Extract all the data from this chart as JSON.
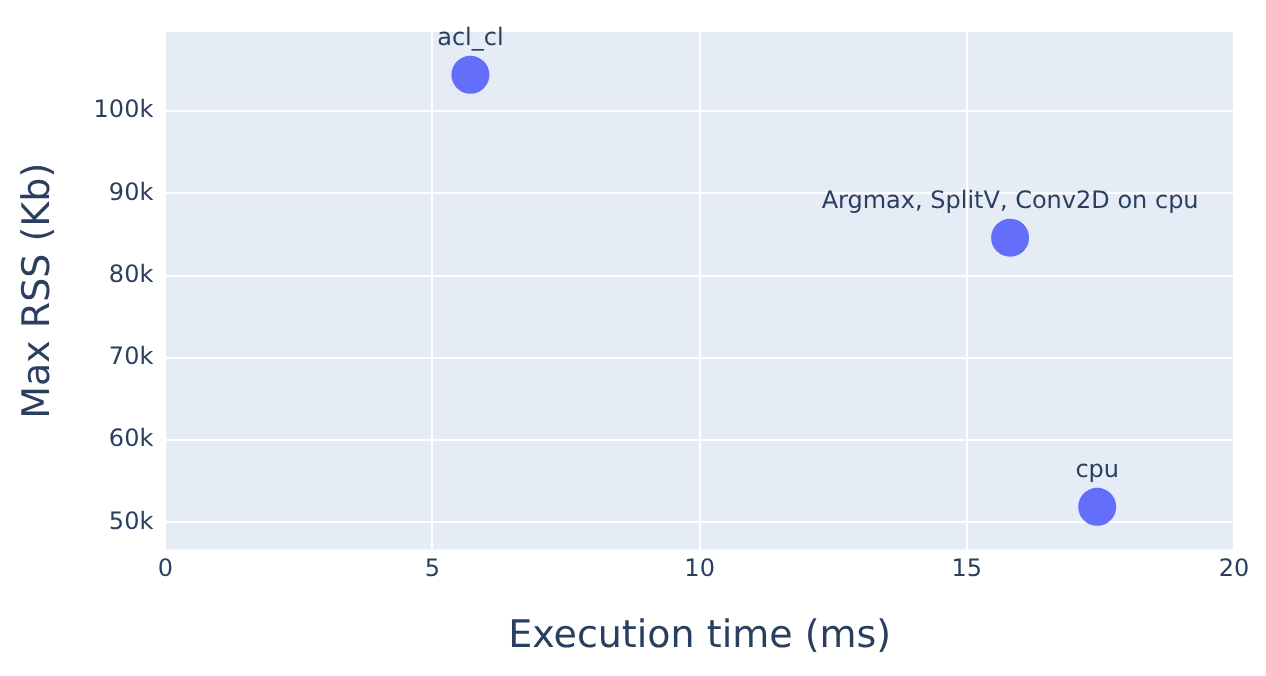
{
  "chart_data": {
    "type": "scatter",
    "xlabel": "Execution time (ms)",
    "ylabel": "Max RSS (Kb)",
    "x": [
      5.71,
      15.81,
      17.44
    ],
    "values": [
      104400,
      84600,
      51900
    ],
    "color": "#636efa",
    "marker": "circle",
    "grid": true,
    "xlim": [
      0,
      20
    ],
    "xticks": [
      0,
      5,
      10,
      15,
      20
    ],
    "ylim": [
      46700,
      109600
    ],
    "yticks": [
      {
        "value": 50000,
        "label": "50k"
      },
      {
        "value": 60000,
        "label": "60k"
      },
      {
        "value": 70000,
        "label": "70k"
      },
      {
        "value": 80000,
        "label": "80k"
      },
      {
        "value": 90000,
        "label": "90k"
      },
      {
        "value": 100000,
        "label": "100k"
      }
    ],
    "annotations": [
      {
        "text": "acl_cl",
        "x": 5.71,
        "y": 104400
      },
      {
        "text": "Argmax, SplitV, Conv2D on cpu",
        "x": 15.81,
        "y": 84600
      },
      {
        "text": "cpu",
        "x": 17.44,
        "y": 51900
      }
    ]
  }
}
